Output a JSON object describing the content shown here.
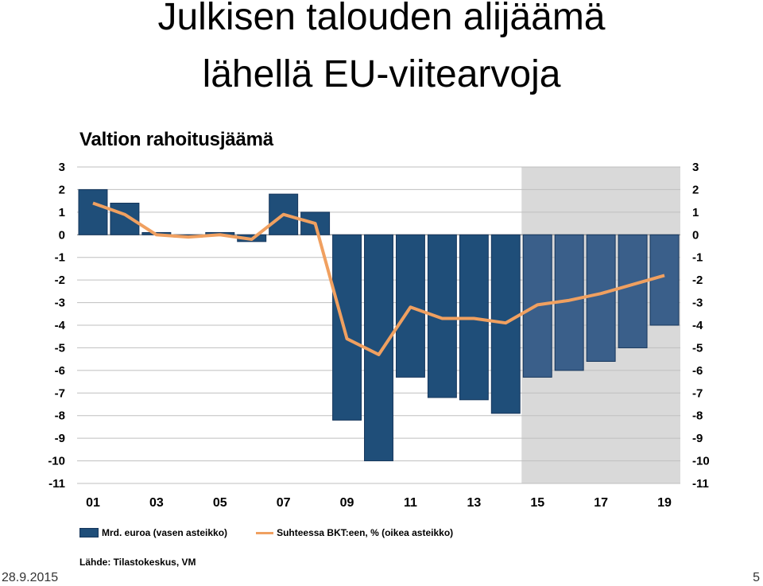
{
  "slide": {
    "title_line1": "Julkisen talouden alijäämä",
    "title_line2": "lähellä EU-viitearvoja",
    "footer_date": "28.9.2015",
    "page_number": "5"
  },
  "chart_data": {
    "type": "bar",
    "title": "Valtion rahoitusjäämä",
    "x_tick_labels": [
      "01",
      "03",
      "05",
      "07",
      "09",
      "11",
      "13",
      "15",
      "17",
      "19"
    ],
    "years": [
      2001,
      2002,
      2003,
      2004,
      2005,
      2006,
      2007,
      2008,
      2009,
      2010,
      2011,
      2012,
      2013,
      2014,
      2015,
      2016,
      2017,
      2018,
      2019
    ],
    "forecast_start_year": 2015,
    "series": [
      {
        "name": "Mrd. euroa (vasen asteikko)",
        "type": "bar",
        "axis": "left",
        "color": "#1f4e79",
        "forecast_color": "#3a5f8a",
        "values": [
          2.0,
          1.4,
          0.1,
          -0.1,
          0.1,
          -0.3,
          1.8,
          1.0,
          -8.2,
          -10.0,
          -6.3,
          -7.2,
          -7.3,
          -7.9,
          -6.3,
          -6.0,
          -5.6,
          -5.0,
          -4.0
        ]
      },
      {
        "name": "Suhteessa BKT:een, % (oikea asteikko)",
        "type": "line",
        "axis": "right",
        "color": "#f0a060",
        "values": [
          1.4,
          0.9,
          0.0,
          -0.1,
          0.0,
          -0.2,
          0.9,
          0.5,
          -4.6,
          -5.3,
          -3.2,
          -3.7,
          -3.7,
          -3.9,
          -3.1,
          -2.9,
          -2.6,
          -2.2,
          -1.8
        ]
      }
    ],
    "left_axis": {
      "ylim": [
        -11,
        3
      ],
      "ticks": [
        "3",
        "2",
        "1",
        "0",
        "-1",
        "-2",
        "-3",
        "-4",
        "-5",
        "-6",
        "-7",
        "-8",
        "-9",
        "-10",
        "-11"
      ]
    },
    "right_axis": {
      "ylim": [
        -11,
        3
      ],
      "ticks": [
        "3",
        "2",
        "1",
        "0",
        "-1",
        "-2",
        "-3",
        "-4",
        "-5",
        "-6",
        "-7",
        "-8",
        "-9",
        "-10",
        "-11"
      ]
    },
    "grid": true,
    "legend_position": "bottom",
    "source": "Lähde: Tilastokeskus, VM"
  }
}
